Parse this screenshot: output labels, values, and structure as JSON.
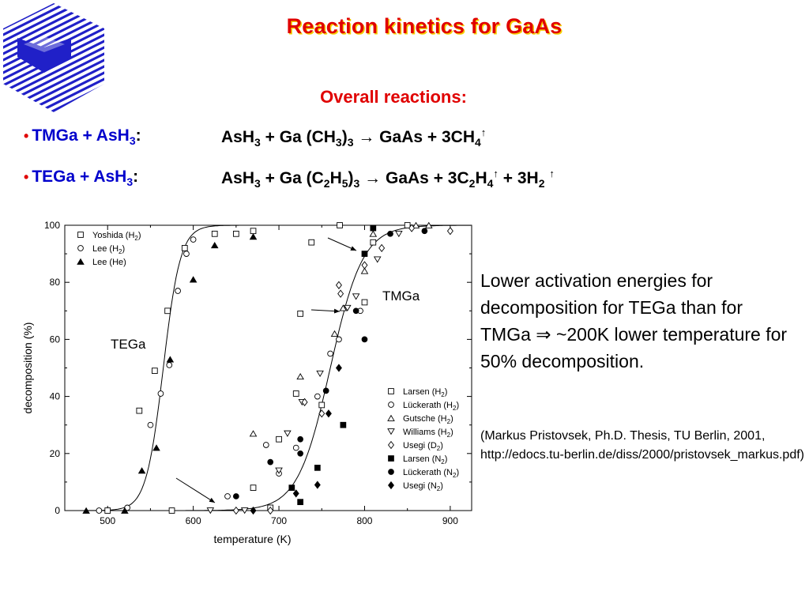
{
  "slide": {
    "title": "Reaction kinetics for GaAs",
    "subtitle": "Overall reactions:",
    "reactions": [
      {
        "bullet": "•",
        "name": "TMGa + AsH",
        "name_sub": "3",
        "colon": ":"
      },
      {
        "bullet": "•",
        "name": "TEGa + AsH",
        "name_sub": "3",
        "colon": ":"
      }
    ],
    "note": "Lower activation energies for decomposition for TEGa than for TMGa ⇒ ~200K lower temperature for 50% decomposition.",
    "reference": "(Markus Pristovsek, Ph.D. Thesis, TU Berlin, 2001, http://edocs.tu-berlin.de/diss/2000/pristovsek_markus.pdf)"
  },
  "colors": {
    "title": "#e00000",
    "title_shadow": "#f4d000",
    "reaction_name": "#0000cc",
    "logo": "#2020c8"
  },
  "chart_data": {
    "type": "scatter",
    "xlabel": "temperature  (K)",
    "ylabel": "decomposition  (%)",
    "xlim": [
      450,
      925
    ],
    "ylim": [
      0,
      100
    ],
    "xticks": [
      500,
      600,
      700,
      800,
      900
    ],
    "yticks": [
      0,
      20,
      40,
      60,
      80,
      100
    ],
    "grid": false,
    "curves": [
      {
        "label": "TEGa",
        "x50": 565,
        "width": 10
      },
      {
        "label": "TMGa",
        "x50": 760,
        "width": 19
      }
    ],
    "annotations": [
      "TEGa",
      "TMGa"
    ],
    "legend_left": [
      {
        "name": "Yoshida (H2)",
        "base": "Yoshida (H",
        "sub": "2",
        "tail": ")",
        "marker": "square-open"
      },
      {
        "name": "Lee (H2)",
        "base": "Lee (H",
        "sub": "2",
        "tail": ")",
        "marker": "circle-open"
      },
      {
        "name": "Lee (He)",
        "base": "Lee (He)",
        "sub": "",
        "tail": "",
        "marker": "triangle-filled"
      }
    ],
    "legend_right": [
      {
        "name": "Larsen (H2)",
        "base": "Larsen (H",
        "sub": "2",
        "tail": ")",
        "marker": "square-open"
      },
      {
        "name": "Lückerath (H2)",
        "base": "Lückerath (H",
        "sub": "2",
        "tail": ")",
        "marker": "circle-open"
      },
      {
        "name": "Gutsche (H2)",
        "base": "Gutsche (H",
        "sub": "2",
        "tail": ")",
        "marker": "triangle-open"
      },
      {
        "name": "Williams (H2)",
        "base": "Williams (H",
        "sub": "2",
        "tail": ")",
        "marker": "triangle-down-open"
      },
      {
        "name": "Usegi (D2)",
        "base": "Usegi (D",
        "sub": "2",
        "tail": ")",
        "marker": "diamond-open"
      },
      {
        "name": "Larsen (N2)",
        "base": "Larsen (N",
        "sub": "2",
        "tail": ")",
        "marker": "square-filled"
      },
      {
        "name": "Lückerath (N2)",
        "base": "Lückerath (N",
        "sub": "2",
        "tail": ")",
        "marker": "circle-filled"
      },
      {
        "name": "Usegi (N2)",
        "base": "Usegi (N",
        "sub": "2",
        "tail": ")",
        "marker": "diamond-filled"
      }
    ],
    "series": [
      {
        "name": "Yoshida (H2)",
        "marker": "square-open",
        "points": [
          [
            500,
            0
          ],
          [
            537,
            35
          ],
          [
            555,
            49
          ],
          [
            570,
            70
          ],
          [
            575,
            0
          ],
          [
            590,
            92
          ],
          [
            625,
            97
          ],
          [
            650,
            97
          ],
          [
            670,
            98
          ]
        ]
      },
      {
        "name": "Lee (H2)",
        "marker": "circle-open",
        "points": [
          [
            490,
            0
          ],
          [
            523,
            1
          ],
          [
            550,
            30
          ],
          [
            562,
            41
          ],
          [
            572,
            51
          ],
          [
            582,
            77
          ],
          [
            592,
            90
          ],
          [
            600,
            95
          ]
        ]
      },
      {
        "name": "Lee (He)",
        "marker": "triangle-filled",
        "points": [
          [
            475,
            0
          ],
          [
            520,
            0
          ],
          [
            540,
            14
          ],
          [
            557,
            22
          ],
          [
            573,
            53
          ],
          [
            600,
            81
          ],
          [
            625,
            93
          ],
          [
            670,
            96
          ]
        ]
      },
      {
        "name": "Larsen (H2)",
        "marker": "square-open",
        "points": [
          [
            670,
            8
          ],
          [
            690,
            1
          ],
          [
            700,
            25
          ],
          [
            720,
            41
          ],
          [
            725,
            69
          ],
          [
            738,
            94
          ],
          [
            750,
            37
          ],
          [
            771,
            100
          ],
          [
            800,
            73
          ],
          [
            810,
            94
          ],
          [
            850,
            100
          ]
        ]
      },
      {
        "name": "Lückerath (H2)",
        "marker": "circle-open",
        "points": [
          [
            640,
            5
          ],
          [
            685,
            23
          ],
          [
            700,
            13
          ],
          [
            720,
            22
          ],
          [
            745,
            40
          ],
          [
            760,
            55
          ],
          [
            770,
            60
          ],
          [
            795,
            70
          ]
        ]
      },
      {
        "name": "Gutsche (H2)",
        "marker": "triangle-open",
        "points": [
          [
            670,
            27
          ],
          [
            725,
            47
          ],
          [
            765,
            62
          ],
          [
            775,
            71
          ],
          [
            800,
            84
          ],
          [
            810,
            97
          ],
          [
            860,
            100
          ],
          [
            875,
            100
          ]
        ]
      },
      {
        "name": "Williams (H2)",
        "marker": "triangle-down-open",
        "points": [
          [
            620,
            0
          ],
          [
            660,
            0
          ],
          [
            700,
            14
          ],
          [
            710,
            27
          ],
          [
            727,
            38
          ],
          [
            748,
            48
          ],
          [
            780,
            71
          ],
          [
            790,
            75
          ],
          [
            815,
            88
          ],
          [
            840,
            97
          ]
        ]
      },
      {
        "name": "Usegi (D2)",
        "marker": "diamond-open",
        "points": [
          [
            650,
            0
          ],
          [
            690,
            0
          ],
          [
            730,
            38
          ],
          [
            750,
            34
          ],
          [
            770,
            79
          ],
          [
            772,
            76
          ],
          [
            800,
            86
          ],
          [
            820,
            92
          ],
          [
            855,
            99
          ],
          [
            900,
            98
          ]
        ]
      },
      {
        "name": "Larsen (N2)",
        "marker": "square-filled",
        "points": [
          [
            715,
            8
          ],
          [
            725,
            3
          ],
          [
            745,
            15
          ],
          [
            775,
            30
          ],
          [
            800,
            90
          ],
          [
            810,
            99
          ]
        ]
      },
      {
        "name": "Lückerath (N2)",
        "marker": "circle-filled",
        "points": [
          [
            650,
            5
          ],
          [
            690,
            17
          ],
          [
            725,
            20
          ],
          [
            725,
            25
          ],
          [
            755,
            42
          ],
          [
            790,
            70
          ],
          [
            800,
            60
          ],
          [
            830,
            97
          ],
          [
            870,
            98
          ]
        ]
      },
      {
        "name": "Usegi (N2)",
        "marker": "diamond-filled",
        "points": [
          [
            670,
            0
          ],
          [
            720,
            6
          ],
          [
            745,
            9
          ],
          [
            758,
            34
          ],
          [
            770,
            50
          ]
        ]
      }
    ]
  }
}
